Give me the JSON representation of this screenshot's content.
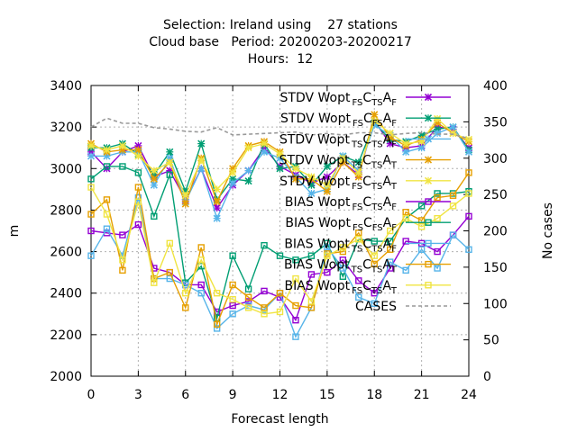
{
  "chart_data": {
    "type": "line",
    "title_lines": [
      "Selection: Ireland using    27 stations",
      "Cloud base   Period: 20200203-20200217",
      "Hours:  12"
    ],
    "xlabel": "Forecast length",
    "ylabel": "m",
    "y2label": "No cases",
    "xlim": [
      0,
      24
    ],
    "ylim": [
      2000,
      3400
    ],
    "y2lim": [
      0,
      400
    ],
    "xticks": [
      0,
      3,
      6,
      9,
      12,
      15,
      18,
      21,
      24
    ],
    "yticks": [
      2000,
      2200,
      2400,
      2600,
      2800,
      3000,
      3200,
      3400
    ],
    "y2ticks": [
      0,
      50,
      100,
      150,
      200,
      250,
      300,
      350,
      400
    ],
    "grid": true,
    "legend_position": "top-right",
    "x": [
      0,
      1,
      2,
      3,
      4,
      5,
      6,
      7,
      8,
      9,
      10,
      11,
      12,
      13,
      14,
      15,
      16,
      17,
      18,
      19,
      20,
      21,
      22,
      23,
      24
    ],
    "series": [
      {
        "label_main": "STDV Wopt",
        "label_sub": [
          "FS",
          "C",
          "TS",
          "A",
          "F"
        ],
        "marker": "x",
        "color": "#9400d3",
        "dash": "solid",
        "axis": "y",
        "values": [
          3080,
          3000,
          3080,
          3110,
          2960,
          2990,
          2850,
          3000,
          2810,
          2920,
          2990,
          3100,
          3010,
          2970,
          2930,
          2960,
          3030,
          2970,
          3230,
          3120,
          3100,
          3110,
          3200,
          3190,
          3100
        ]
      },
      {
        "label_main": "STDV Wopt",
        "label_sub": [
          "FS",
          "C",
          "FS",
          "A",
          "F"
        ],
        "marker": "x",
        "color": "#009e73",
        "dash": "solid",
        "axis": "y",
        "values": [
          3100,
          3100,
          3120,
          3070,
          2970,
          3080,
          2890,
          3120,
          2850,
          2950,
          2940,
          3120,
          3000,
          3010,
          2920,
          3010,
          3060,
          3030,
          3220,
          3140,
          3130,
          3160,
          3190,
          3200,
          3090
        ]
      },
      {
        "label_main": "STDV Wopt",
        "label_sub": [
          "TS",
          "C",
          "TS",
          "A",
          "F"
        ],
        "marker": "x",
        "color": "#56b4e9",
        "dash": "solid",
        "axis": "y",
        "values": [
          3060,
          3060,
          3080,
          3080,
          2920,
          3050,
          2840,
          3000,
          2760,
          2930,
          2990,
          3080,
          3050,
          2960,
          2880,
          2900,
          3060,
          2990,
          3210,
          3160,
          3080,
          3100,
          3170,
          3200,
          3080
        ]
      },
      {
        "label_main": "STDV Wopt",
        "label_sub": [
          "TS",
          "C",
          "TS",
          "A",
          "T"
        ],
        "marker": "x",
        "color": "#e69f00",
        "dash": "solid",
        "axis": "y",
        "values": [
          3120,
          3080,
          3090,
          3090,
          2950,
          3030,
          2830,
          3050,
          2840,
          3000,
          3110,
          3130,
          3080,
          2950,
          2950,
          2890,
          3030,
          2960,
          3260,
          3150,
          3110,
          3140,
          3220,
          3170,
          3130
        ]
      },
      {
        "label_main": "STDV Wopt",
        "label_sub": [
          "FS",
          "C",
          "TS",
          "A",
          "T"
        ],
        "marker": "x",
        "color": "#f0e442",
        "dash": "solid",
        "axis": "y",
        "values": [
          3110,
          3090,
          3110,
          3060,
          2990,
          3030,
          2870,
          3040,
          2900,
          2980,
          3100,
          3120,
          3070,
          3000,
          2960,
          2920,
          3050,
          2980,
          3230,
          3170,
          3120,
          3130,
          3240,
          3170,
          3140
        ]
      },
      {
        "label_main": "BIAS Wopt",
        "label_sub": [
          "FS",
          "C",
          "TS",
          "A",
          "F"
        ],
        "marker": "square",
        "color": "#9400d3",
        "dash": "solid",
        "axis": "y",
        "values": [
          2700,
          2690,
          2680,
          2730,
          2520,
          2500,
          2440,
          2440,
          2310,
          2340,
          2360,
          2410,
          2380,
          2270,
          2490,
          2500,
          2560,
          2460,
          2400,
          2520,
          2650,
          2640,
          2600,
          2680,
          2770
        ]
      },
      {
        "label_main": "BIAS Wopt",
        "label_sub": [
          "FS",
          "C",
          "FS",
          "A",
          "F"
        ],
        "marker": "square",
        "color": "#009e73",
        "dash": "solid",
        "axis": "y",
        "values": [
          2950,
          3010,
          3010,
          2980,
          2770,
          2970,
          2450,
          2530,
          2280,
          2580,
          2420,
          2630,
          2580,
          2560,
          2580,
          2640,
          2480,
          2660,
          2650,
          2650,
          2760,
          2820,
          2880,
          2880,
          2890
        ]
      },
      {
        "label_main": "BIAS Wopt",
        "label_sub": [
          "TS",
          "C",
          "TS",
          "A",
          "F"
        ],
        "marker": "square",
        "color": "#56b4e9",
        "dash": "solid",
        "axis": "y",
        "values": [
          2580,
          2710,
          2580,
          2860,
          2470,
          2470,
          2440,
          2400,
          2230,
          2300,
          2340,
          2320,
          2400,
          2190,
          2330,
          2620,
          2520,
          2380,
          2350,
          2550,
          2510,
          2610,
          2520,
          2680,
          2610
        ]
      },
      {
        "label_main": "BIAS Wopt",
        "label_sub": [
          "TS",
          "C",
          "TS",
          "A",
          "T"
        ],
        "marker": "square",
        "color": "#e69f00",
        "dash": "solid",
        "axis": "y",
        "values": [
          2780,
          2850,
          2510,
          2910,
          2470,
          2500,
          2330,
          2620,
          2250,
          2440,
          2380,
          2330,
          2400,
          2340,
          2330,
          2590,
          2600,
          2690,
          2540,
          2610,
          2790,
          2750,
          2860,
          2870,
          2980
        ]
      },
      {
        "label_main": "BIAS Wopt",
        "label_sub": [
          "FS",
          "C",
          "TS",
          "A",
          "T"
        ],
        "marker": "square",
        "color": "#f0e442",
        "dash": "solid",
        "axis": "y",
        "values": [
          2910,
          2780,
          2560,
          2840,
          2450,
          2640,
          2400,
          2560,
          2400,
          2370,
          2330,
          2300,
          2310,
          2470,
          2360,
          2580,
          2620,
          2660,
          2580,
          2700,
          2760,
          2720,
          2760,
          2820,
          2880
        ]
      },
      {
        "label_main": "CASES",
        "label_sub": [],
        "marker": "none",
        "color": "#999999",
        "dash": "dashed",
        "axis": "y2",
        "values": [
          343,
          355,
          348,
          348,
          342,
          340,
          337,
          336,
          342,
          332,
          333,
          334,
          335,
          336,
          332,
          334,
          332,
          335,
          335,
          332,
          334,
          335,
          333,
          333,
          327
        ]
      }
    ]
  }
}
